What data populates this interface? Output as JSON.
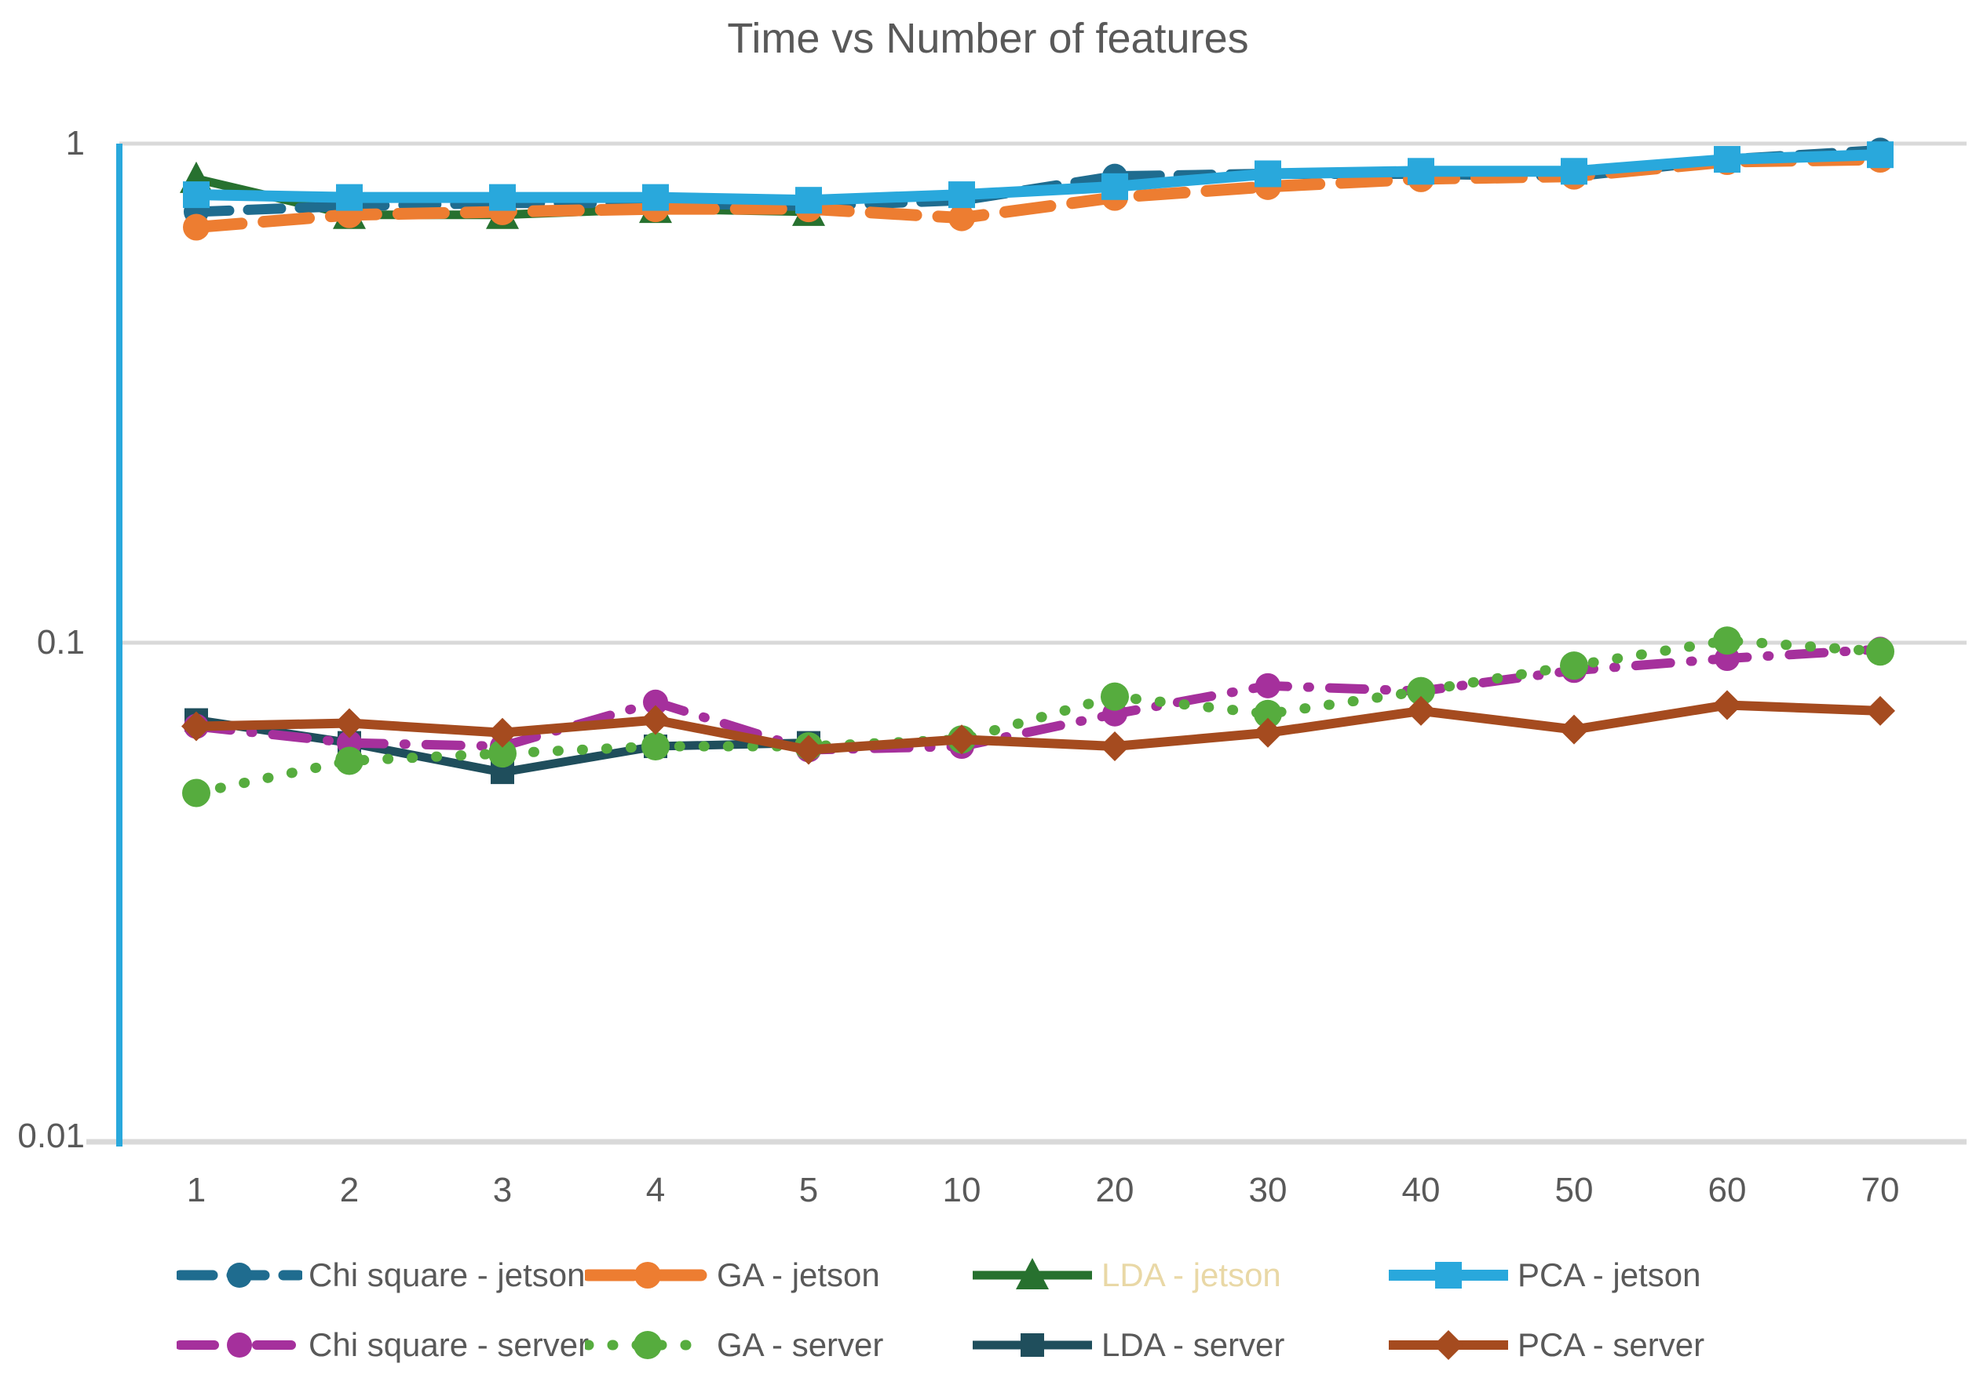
{
  "title": "Time vs Number of features",
  "y_axis": {
    "tick_labels": [
      "1",
      "0.1",
      "0.01"
    ]
  },
  "x_axis": {
    "tick_labels": [
      "1",
      "2",
      "3",
      "4",
      "5",
      "10",
      "20",
      "30",
      "40",
      "50",
      "60",
      "70"
    ]
  },
  "colors": {
    "title_text": "#595959",
    "axis_text": "#595959",
    "gridline": "#D9D9D9",
    "vertical_axis_line": "#29A8DC",
    "lda_jetson_label": "#E9D8A6"
  },
  "chart_data": {
    "type": "line",
    "title": "Time vs Number of features",
    "xlabel": "",
    "ylabel": "",
    "x_categories": [
      "1",
      "2",
      "3",
      "4",
      "5",
      "10",
      "20",
      "30",
      "40",
      "50",
      "60",
      "70"
    ],
    "y_scale": "log",
    "ylim": [
      0.01,
      1
    ],
    "y_ticks": [
      1,
      0.1,
      0.01
    ],
    "grid": "horizontal",
    "legend_position": "bottom",
    "series": [
      {
        "name": "Chi square - jetson",
        "color": "#1F6C8F",
        "label_color": "#595959",
        "line_style": "dashed",
        "marker": "circle",
        "values": [
          0.73,
          0.75,
          0.76,
          0.76,
          0.75,
          0.77,
          0.86,
          0.87,
          0.87,
          0.86,
          0.93,
          0.97
        ]
      },
      {
        "name": "GA - jetson",
        "color": "#ED7D31",
        "label_color": "#595959",
        "line_style": "dashed",
        "marker": "circle",
        "values": [
          0.68,
          0.72,
          0.73,
          0.74,
          0.74,
          0.71,
          0.78,
          0.82,
          0.85,
          0.86,
          0.92,
          0.93
        ]
      },
      {
        "name": "LDA - jetson",
        "color": "#27712F",
        "label_color": "#E9D8A6",
        "line_style": "solid",
        "marker": "triangle",
        "values": [
          0.85,
          0.72,
          0.72,
          0.74,
          0.73,
          null,
          null,
          null,
          null,
          null,
          null,
          null
        ]
      },
      {
        "name": "PCA - jetson",
        "color": "#29A8DC",
        "label_color": "#595959",
        "line_style": "solid",
        "marker": "square",
        "values": [
          0.79,
          0.78,
          0.78,
          0.78,
          0.77,
          0.79,
          0.82,
          0.87,
          0.88,
          0.88,
          0.93,
          0.95
        ]
      },
      {
        "name": "Chi square - server",
        "color": "#A5309C",
        "label_color": "#595959",
        "line_style": "dash-dot",
        "marker": "circle",
        "values": [
          0.068,
          0.063,
          0.062,
          0.076,
          0.061,
          0.062,
          0.072,
          0.082,
          0.08,
          0.088,
          0.093,
          0.097
        ]
      },
      {
        "name": "GA - server",
        "color": "#56AC3E",
        "label_color": "#595959",
        "line_style": "dotted",
        "marker": "circle",
        "values": [
          0.05,
          0.058,
          0.06,
          0.062,
          0.062,
          0.064,
          0.078,
          0.072,
          0.08,
          0.09,
          0.101,
          0.096
        ]
      },
      {
        "name": "LDA - server",
        "color": "#1F4E5C",
        "label_color": "#595959",
        "line_style": "solid",
        "marker": "square",
        "values": [
          0.07,
          0.063,
          0.055,
          0.062,
          0.063,
          null,
          null,
          null,
          null,
          null,
          null,
          null
        ]
      },
      {
        "name": "PCA - server",
        "color": "#A54B1F",
        "label_color": "#595959",
        "line_style": "solid",
        "marker": "diamond",
        "values": [
          0.068,
          0.069,
          0.066,
          0.07,
          0.061,
          0.064,
          0.062,
          0.066,
          0.073,
          0.067,
          0.075,
          0.073
        ]
      }
    ]
  }
}
